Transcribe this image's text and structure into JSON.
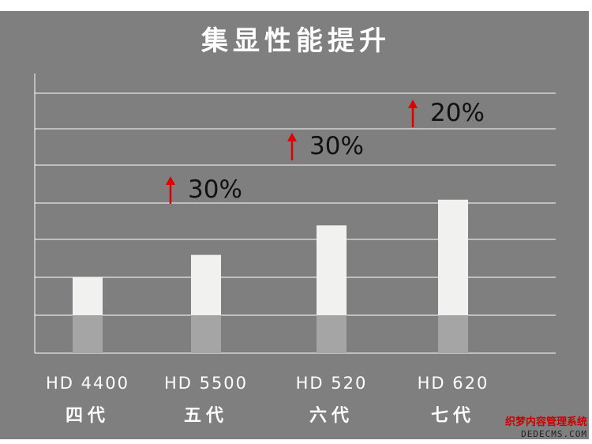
{
  "chart_data": {
    "type": "bar",
    "title": "集显性能提升",
    "categories": [
      "HD 4400",
      "HD 5500",
      "HD 520",
      "HD 620"
    ],
    "generations": [
      "四代",
      "五代",
      "六代",
      "七代"
    ],
    "values": [
      1.0,
      1.3,
      1.69,
      2.03
    ],
    "increase_labels": [
      "",
      "30%",
      "30%",
      "20%"
    ],
    "ylim": [
      0,
      3.7
    ],
    "base_value": 0.5,
    "grid": true,
    "gridline_count": 8,
    "colors": {
      "background": "#7f7f7f",
      "bar": "#f1f1ef",
      "bar_base": "#a5a5a5",
      "gridline": "#ffffff",
      "arrow": "#e00000",
      "increase_text": "#111111",
      "label_text": "#ffffff"
    }
  },
  "watermark": {
    "line1": "织梦内容管理系统",
    "line2": "DEDECMS.COM"
  }
}
